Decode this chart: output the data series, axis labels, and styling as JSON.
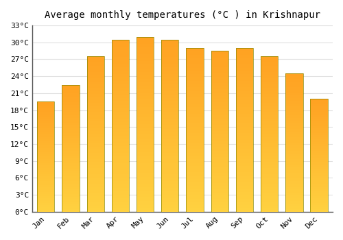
{
  "title": "Average monthly temperatures (°C ) in Krishnapur",
  "months": [
    "Jan",
    "Feb",
    "Mar",
    "Apr",
    "May",
    "Jun",
    "Jul",
    "Aug",
    "Sep",
    "Oct",
    "Nov",
    "Dec"
  ],
  "temperatures": [
    19.5,
    22.5,
    27.5,
    30.5,
    31.0,
    30.5,
    29.0,
    28.5,
    29.0,
    27.5,
    24.5,
    20.0
  ],
  "bar_color_top": "#FFA020",
  "bar_color_bottom": "#FFD040",
  "bar_edge_color": "#888800",
  "ylim": [
    0,
    33
  ],
  "yticks": [
    0,
    3,
    6,
    9,
    12,
    15,
    18,
    21,
    24,
    27,
    30,
    33
  ],
  "background_color": "#FFFFFF",
  "grid_color": "#E0E0E0",
  "title_fontsize": 10,
  "tick_fontsize": 8,
  "bar_width": 0.7
}
